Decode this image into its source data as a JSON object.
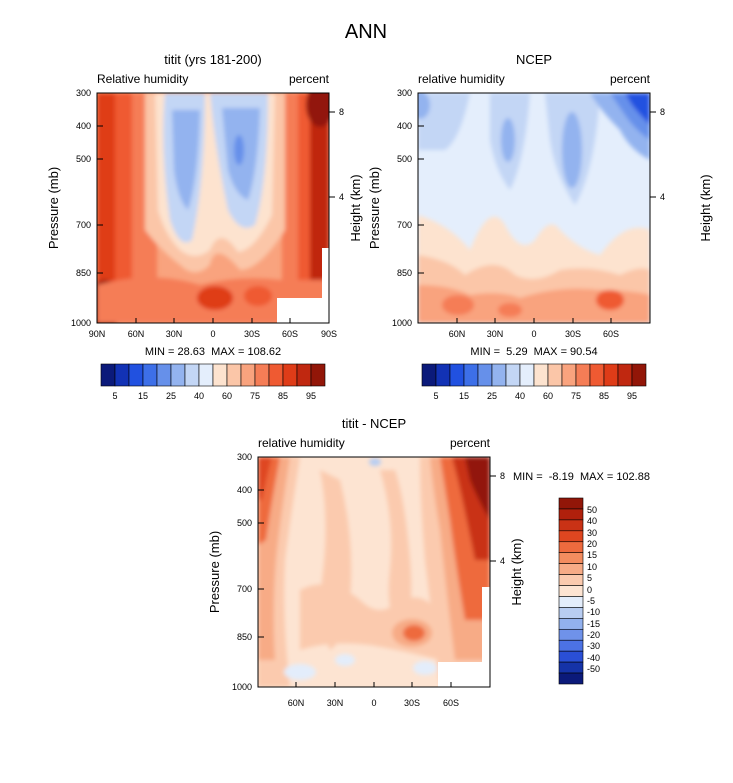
{
  "page_title": "ANN",
  "chart_data": [
    {
      "type": "heatmap",
      "title": "titit (yrs 181-200)",
      "left_label": "Relative humidity",
      "right_label": "percent",
      "ylabel": "Pressure (mb)",
      "ylabel_right": "Height (km)",
      "x_ticks": [
        "90N",
        "60N",
        "30N",
        "0",
        "30S",
        "60S",
        "90S"
      ],
      "y_ticks": [
        "300",
        "400",
        "500",
        "700",
        "850",
        "1000"
      ],
      "right_ticks": [
        "8",
        "4"
      ],
      "stats": "MIN = 28.63  MAX = 108.62",
      "colorbar": {
        "orientation": "horizontal",
        "labels": [
          "5",
          "15",
          "25",
          "40",
          "60",
          "75",
          "85",
          "95"
        ],
        "colors": [
          "#0b1a7a",
          "#1232b5",
          "#2151e0",
          "#3d6fe8",
          "#6690ea",
          "#93b3ef",
          "#c3d6f5",
          "#e4eefc",
          "#fde3cf",
          "#fbc6a8",
          "#f9a37e",
          "#f57d56",
          "#ef5a32",
          "#df3c18",
          "#c02810",
          "#921608"
        ]
      },
      "masked_region": "surface below ~900 mb south of 45S (white)",
      "features": [
        {
          "kind": "dry",
          "label": "subtropical minima near 20N and 20S",
          "value_range": "20-35"
        },
        {
          "kind": "moist",
          "label": "deep tropics and high latitudes",
          "value_range": "60-100"
        }
      ]
    },
    {
      "type": "heatmap",
      "title": "NCEP",
      "left_label": "relative humidity",
      "right_label": "percent",
      "ylabel": "Pressure (mb)",
      "ylabel_right": "Height (km)",
      "x_ticks": [
        "60N",
        "30N",
        "0",
        "30S",
        "60S"
      ],
      "y_ticks": [
        "300",
        "400",
        "500",
        "700",
        "850",
        "1000"
      ],
      "right_ticks": [
        "8",
        "4"
      ],
      "stats": "MIN =  5.29  MAX = 90.54",
      "colorbar": {
        "orientation": "horizontal",
        "labels": [
          "5",
          "15",
          "25",
          "40",
          "60",
          "75",
          "85",
          "95"
        ],
        "colors": [
          "#0b1a7a",
          "#1232b5",
          "#2151e0",
          "#3d6fe8",
          "#6690ea",
          "#93b3ef",
          "#c3d6f5",
          "#e4eefc",
          "#fde3cf",
          "#fbc6a8",
          "#f9a37e",
          "#f57d56",
          "#ef5a32",
          "#df3c18",
          "#c02810",
          "#921608"
        ]
      }
    },
    {
      "type": "heatmap",
      "title": "titit - NCEP",
      "left_label": "relative humidity",
      "right_label": "percent",
      "ylabel": "Pressure (mb)",
      "ylabel_right": "Height (km)",
      "x_ticks": [
        "60N",
        "30N",
        "0",
        "30S",
        "60S"
      ],
      "y_ticks": [
        "300",
        "400",
        "500",
        "700",
        "850",
        "1000"
      ],
      "right_ticks": [
        "8",
        "4"
      ],
      "stats": "MIN =  -8.19  MAX = 102.88",
      "colorbar": {
        "orientation": "vertical",
        "labels": [
          "50",
          "40",
          "30",
          "20",
          "15",
          "10",
          "5",
          "0",
          "-5",
          "-10",
          "-15",
          "-20",
          "-30",
          "-40",
          "-50"
        ],
        "colors": [
          "#921608",
          "#b0200c",
          "#c93215",
          "#df4620",
          "#ee6a3e",
          "#f38c5f",
          "#f7ab86",
          "#fbcaae",
          "#fde4d2",
          "#e3edfb",
          "#b8cdf2",
          "#92b1ee",
          "#6f92ea",
          "#4c72e4",
          "#2a4fd6",
          "#1533a8",
          "#0b1a7a"
        ]
      },
      "masked_region": "surface below ~900 mb near 60S (white)"
    }
  ]
}
